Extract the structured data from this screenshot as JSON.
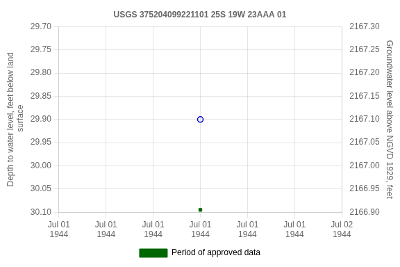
{
  "chart_data": {
    "type": "scatter",
    "title": "USGS 375204099221101 25S 19W 23AAA 01",
    "y_label": "Depth to water level, feet below land\n surface",
    "y2_label": "Groundwater level above NGVD 1929, feet",
    "categories": [
      "Jul 01\n1944",
      "Jul 01\n1944",
      "Jul 01\n1944",
      "Jul 01\n1944",
      "Jul 01\n1944",
      "Jul 01\n1944",
      "Jul 02\n1944"
    ],
    "series": [
      {
        "color": "#0000cc",
        "marker": "circle",
        "values": [
          null,
          null,
          null,
          29.9,
          null,
          null,
          null
        ]
      },
      {
        "name": "Period of approved data",
        "color": "#006600",
        "marker": "square",
        "values": [
          null,
          null,
          null,
          30.095,
          null,
          null,
          null
        ]
      }
    ],
    "ylim": [
      30.1,
      29.7
    ],
    "yticks": [
      {
        "value": 29.7,
        "label": "29.70"
      },
      {
        "value": 29.75,
        "label": "29.75"
      },
      {
        "value": 29.8,
        "label": "29.80"
      },
      {
        "value": 29.85,
        "label": "29.85"
      },
      {
        "value": 29.9,
        "label": "29.90"
      },
      {
        "value": 29.95,
        "label": "29.95"
      },
      {
        "value": 30.0,
        "label": "30.00"
      },
      {
        "value": 30.05,
        "label": "30.05"
      },
      {
        "value": 30.1,
        "label": "30.10"
      }
    ],
    "y2lim": [
      2166.9,
      2167.3
    ],
    "y2ticks": [
      {
        "value": 2166.9,
        "label": "2166.90"
      },
      {
        "value": 2166.95,
        "label": "2166.95"
      },
      {
        "value": 2167.0,
        "label": "2167.00"
      },
      {
        "value": 2167.05,
        "label": "2167.05"
      },
      {
        "value": 2167.1,
        "label": "2167.10"
      },
      {
        "value": 2167.15,
        "label": "2167.15"
      },
      {
        "value": 2167.2,
        "label": "2167.20"
      },
      {
        "value": 2167.25,
        "label": "2167.25"
      },
      {
        "value": 2167.3,
        "label": "2167.30"
      }
    ],
    "grid": true,
    "legend": "bottom"
  }
}
